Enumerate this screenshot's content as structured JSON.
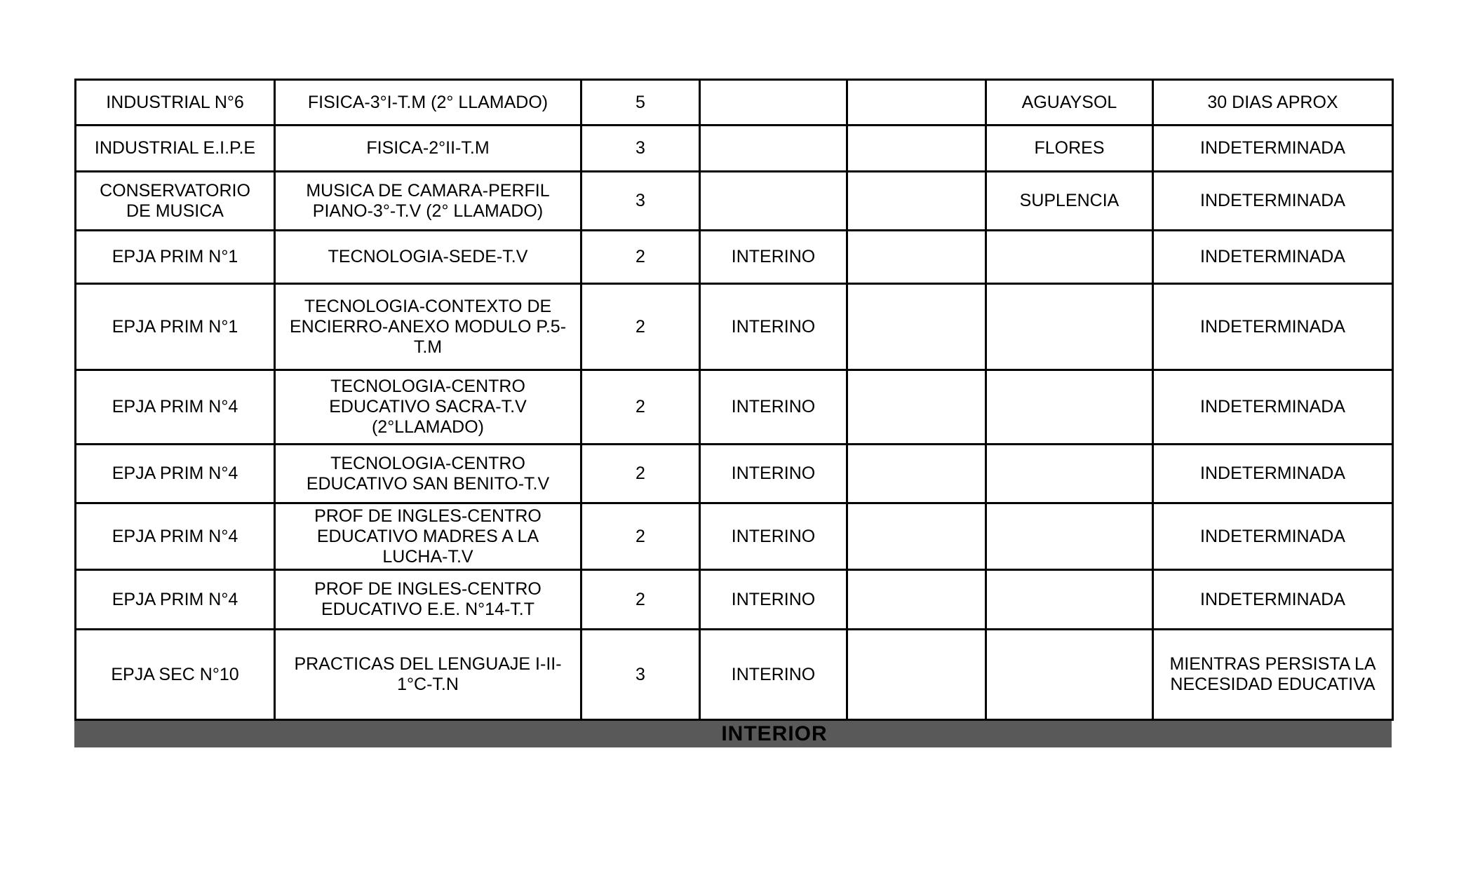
{
  "document": {
    "background": "#ffffff",
    "text_color": "#000000",
    "border_color": "#000000"
  },
  "table": {
    "rows": [
      {
        "school": "INDUSTRIAL N°6",
        "subject": "FISICA-3°I-T.M (2° LLAMADO)",
        "hours": "5",
        "status": "",
        "col5": "",
        "assignee": "AGUAYSOL",
        "duration": "30 DIAS APROX"
      },
      {
        "school": "INDUSTRIAL E.I.P.E",
        "subject": "FISICA-2°II-T.M",
        "hours": "3",
        "status": "",
        "col5": "",
        "assignee": "FLORES",
        "duration": "INDETERMINADA"
      },
      {
        "school": "CONSERVATORIO\nDE MUSICA",
        "subject": "MUSICA DE CAMARA-PERFIL\nPIANO-3°-T.V (2° LLAMADO)",
        "hours": "3",
        "status": "",
        "col5": "",
        "assignee": "SUPLENCIA",
        "duration": "INDETERMINADA"
      },
      {
        "school": "EPJA PRIM N°1",
        "subject": "TECNOLOGIA-SEDE-T.V",
        "hours": "2",
        "status": "INTERINO",
        "col5": "",
        "assignee": "",
        "duration": "INDETERMINADA"
      },
      {
        "school": "EPJA PRIM N°1",
        "subject": "TECNOLOGIA-CONTEXTO DE\nENCIERRO-ANEXO MODULO P.5-\nT.M",
        "hours": "2",
        "status": "INTERINO",
        "col5": "",
        "assignee": "",
        "duration": "INDETERMINADA"
      },
      {
        "school": "EPJA PRIM N°4",
        "subject": "TECNOLOGIA-CENTRO\nEDUCATIVO SACRA-T.V\n(2°LLAMADO)",
        "hours": "2",
        "status": "INTERINO",
        "col5": "",
        "assignee": "",
        "duration": "INDETERMINADA"
      },
      {
        "school": "EPJA PRIM N°4",
        "subject": "TECNOLOGIA-CENTRO\nEDUCATIVO SAN BENITO-T.V",
        "hours": "2",
        "status": "INTERINO",
        "col5": "",
        "assignee": "",
        "duration": "INDETERMINADA"
      },
      {
        "school": "EPJA PRIM N°4",
        "subject": "PROF DE INGLES-CENTRO\nEDUCATIVO MADRES A LA\nLUCHA-T.V",
        "hours": "2",
        "status": "INTERINO",
        "col5": "",
        "assignee": "",
        "duration": "INDETERMINADA"
      },
      {
        "school": "EPJA PRIM N°4",
        "subject": "PROF DE INGLES-CENTRO\nEDUCATIVO E.E. N°14-T.T",
        "hours": "2",
        "status": "INTERINO",
        "col5": "",
        "assignee": "",
        "duration": "INDETERMINADA"
      },
      {
        "school": "EPJA SEC N°10",
        "subject": "PRACTICAS DEL LENGUAJE I-II-\n1°C-T.N",
        "hours": "3",
        "status": "INTERINO",
        "col5": "",
        "assignee": "",
        "duration": "MIENTRAS PERSISTA LA\nNECESIDAD EDUCATIVA"
      }
    ]
  },
  "footer": {
    "label": "INTERIOR",
    "background": "#595959"
  }
}
